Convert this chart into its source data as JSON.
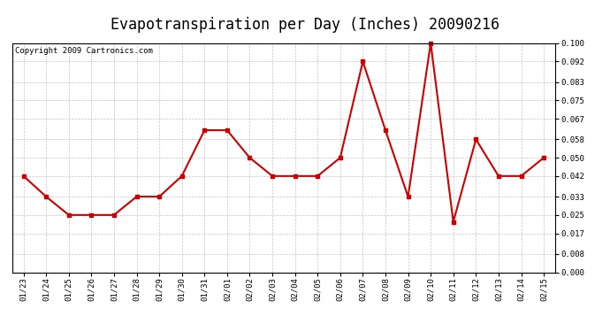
{
  "title": "Evapotranspiration per Day (Inches) 20090216",
  "copyright": "Copyright 2009 Cartronics.com",
  "dates": [
    "01/23",
    "01/24",
    "01/25",
    "01/26",
    "01/27",
    "01/28",
    "01/29",
    "01/30",
    "01/31",
    "02/01",
    "02/02",
    "02/03",
    "02/04",
    "02/05",
    "02/06",
    "02/07",
    "02/08",
    "02/09",
    "02/10",
    "02/11",
    "02/12",
    "02/13",
    "02/14",
    "02/15"
  ],
  "values": [
    0.042,
    0.033,
    0.025,
    0.025,
    0.025,
    0.033,
    0.033,
    0.042,
    0.062,
    0.062,
    0.05,
    0.042,
    0.042,
    0.042,
    0.05,
    0.092,
    0.062,
    0.033,
    0.1,
    0.022,
    0.058,
    0.042,
    0.042,
    0.05
  ],
  "line_color": "#CC0000",
  "marker": "s",
  "marker_size": 3,
  "line_width": 1.5,
  "ylim": [
    0.0,
    0.1
  ],
  "yticks": [
    0.0,
    0.008,
    0.017,
    0.025,
    0.033,
    0.042,
    0.05,
    0.058,
    0.067,
    0.075,
    0.083,
    0.092,
    0.1
  ],
  "bg_color": "#FFFFFF",
  "grid_color": "#AAAAAA",
  "title_fontsize": 12,
  "copyright_fontsize": 6.5,
  "tick_fontsize": 6.5,
  "xlabel_fontsize": 6.5
}
